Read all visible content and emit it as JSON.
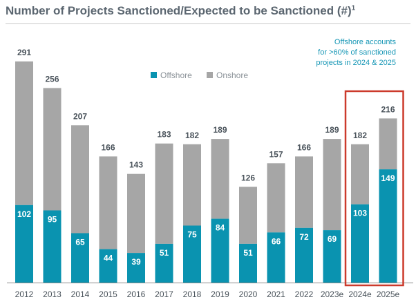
{
  "chart_data": {
    "type": "bar",
    "stacked": true,
    "title": "Number of Projects Sanctioned/Expected to be Sanctioned (#)",
    "title_superscript": "1",
    "categories": [
      "2012",
      "2013",
      "2014",
      "2015",
      "2016",
      "2017",
      "2018",
      "2019",
      "2020",
      "2021",
      "2022",
      "2023e",
      "2024e",
      "2025e"
    ],
    "series": [
      {
        "name": "Offshore",
        "values": [
          102,
          95,
          65,
          44,
          39,
          51,
          75,
          84,
          51,
          66,
          72,
          69,
          103,
          149
        ]
      },
      {
        "name": "Onshore",
        "values": [
          189,
          161,
          142,
          122,
          104,
          132,
          107,
          105,
          75,
          91,
          94,
          120,
          79,
          67
        ]
      }
    ],
    "totals": [
      291,
      256,
      207,
      166,
      143,
      183,
      182,
      189,
      126,
      157,
      166,
      189,
      182,
      216
    ],
    "ylim": [
      0,
      320
    ],
    "xlabel": "",
    "ylabel": "",
    "legend_position": "top-center",
    "annotation": [
      "Offshore accounts",
      "for >60% of sanctioned",
      "projects in 2024 & 2025"
    ],
    "highlight_categories": [
      "2024e",
      "2025e"
    ],
    "colors": {
      "offshore": "#0a93b0",
      "onshore": "#a6a6a6",
      "highlight": "#cc3a2c",
      "annotation": "#1596b5",
      "title": "#5b6670"
    }
  }
}
